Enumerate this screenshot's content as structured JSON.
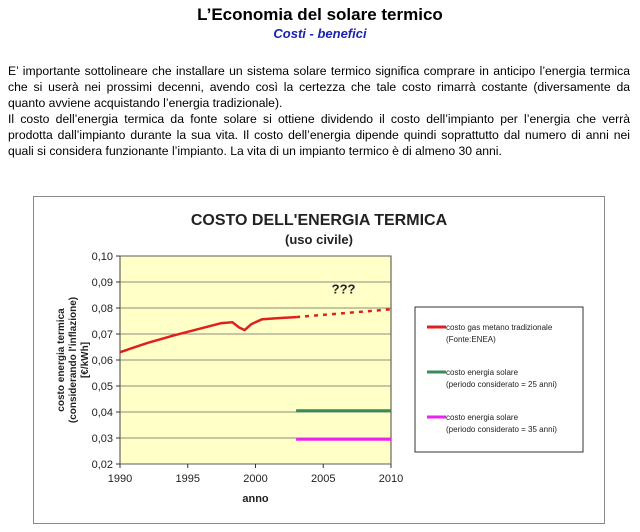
{
  "header": {
    "title": "L’Economia del solare termico",
    "subtitle": "Costi - benefici"
  },
  "body_text": {
    "paragraph_1": "E’ importante sottolineare che installare un sistema solare termico significa comprare in anticipo l’energia termica che si userà nei prossimi decenni, avendo così la certezza che tale costo rimarrà costante (diversamente da quanto avviene acquistando l’energia tradizionale).",
    "paragraph_2": "Il costo dell’energia termica da fonte solare si ottiene dividendo il costo dell’impianto per l’energia che verrà prodotta dall’impianto durante la sua vita. Il costo dell’energia dipende quindi soprattutto dal numero di anni nei quali si considera funzionante l’impianto. La vita di un impianto termico è di almeno 30 anni."
  },
  "chart_data": {
    "type": "line",
    "title": "COSTO DELL'ENERGIA TERMICA",
    "subtitle": "(uso civile)",
    "xlabel": "anno",
    "ylabel_lines": [
      "costo energia termica",
      "(considerando l'inflazione)",
      "[€/kWh]"
    ],
    "xlim": [
      1990,
      2010
    ],
    "ylim": [
      0.02,
      0.1
    ],
    "x_ticks": [
      "1990",
      "1995",
      "2000",
      "2005",
      "2010"
    ],
    "y_ticks": [
      "0,02",
      "0,03",
      "0,04",
      "0,05",
      "0,06",
      "0,07",
      "0,08",
      "0,09",
      "0,10"
    ],
    "grid": true,
    "annotation": "???",
    "series": [
      {
        "name_lines": [
          "costo gas metano tradizionale",
          "(Fonte:ENEA)"
        ],
        "color": "#e02020",
        "points": [
          [
            1990,
            0.063
          ],
          [
            1992,
            0.0665
          ],
          [
            1994,
            0.0695
          ],
          [
            1996,
            0.0722
          ],
          [
            1997.5,
            0.0742
          ],
          [
            1998.3,
            0.0745
          ],
          [
            1998.8,
            0.0725
          ],
          [
            1999.2,
            0.0715
          ],
          [
            1999.7,
            0.0738
          ],
          [
            2000.5,
            0.0757
          ],
          [
            2002,
            0.0762
          ],
          [
            2003,
            0.0765
          ]
        ],
        "projection": [
          [
            2003,
            0.0765
          ],
          [
            2010,
            0.0795
          ]
        ]
      },
      {
        "name_lines": [
          "costo energia solare",
          "(periodo considerato = 25 anni)"
        ],
        "color": "#3a8a5a",
        "points": [
          [
            2003,
            0.0405
          ],
          [
            2010,
            0.0405
          ]
        ]
      },
      {
        "name_lines": [
          "costo energia solare",
          "(periodo considerato = 35 anni)"
        ],
        "color": "#ee22ee",
        "points": [
          [
            2003,
            0.0295
          ],
          [
            2010,
            0.0295
          ]
        ]
      }
    ],
    "legend_position": "right"
  },
  "colors": {
    "plot_background": "#ffffc8",
    "subtitle_blue": "#1a23b0"
  }
}
